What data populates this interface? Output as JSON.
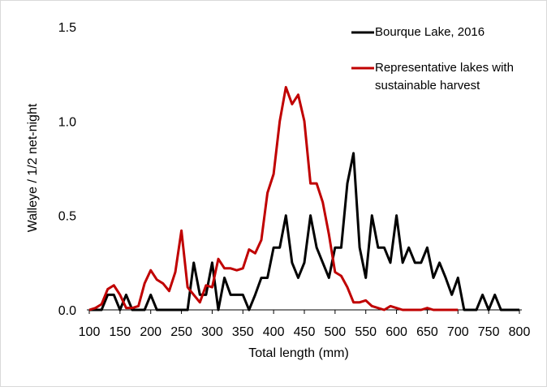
{
  "chart_data": {
    "type": "line",
    "x_label": "Total length (mm)",
    "y_label": "Walleye / 1/2 net-night",
    "x": [
      100,
      110,
      120,
      130,
      140,
      150,
      160,
      170,
      180,
      190,
      200,
      210,
      220,
      230,
      240,
      250,
      260,
      270,
      280,
      290,
      300,
      310,
      320,
      330,
      340,
      350,
      360,
      370,
      380,
      390,
      400,
      410,
      420,
      430,
      440,
      450,
      460,
      470,
      480,
      490,
      500,
      510,
      520,
      530,
      540,
      550,
      560,
      570,
      580,
      590,
      600,
      610,
      620,
      630,
      640,
      650,
      660,
      670,
      680,
      690,
      700,
      710,
      720,
      730,
      740,
      750,
      760,
      770,
      780,
      790,
      800
    ],
    "series": [
      {
        "name": "Bourque Lake, 2016",
        "color": "#000000",
        "values": [
          0,
          0,
          0,
          0.08,
          0.08,
          0,
          0.08,
          0,
          0,
          0,
          0.08,
          0,
          0,
          0,
          0,
          0,
          0,
          0.25,
          0.08,
          0.08,
          0.25,
          0,
          0.17,
          0.08,
          0.08,
          0.08,
          0,
          0.08,
          0.17,
          0.17,
          0.33,
          0.33,
          0.5,
          0.25,
          0.17,
          0.25,
          0.5,
          0.33,
          0.25,
          0.17,
          0.33,
          0.33,
          0.67,
          0.83,
          0.33,
          0.17,
          0.5,
          0.33,
          0.33,
          0.25,
          0.5,
          0.25,
          0.33,
          0.25,
          0.25,
          0.33,
          0.17,
          0.25,
          0.17,
          0.08,
          0.17,
          0,
          0,
          0,
          0.08,
          0,
          0.08,
          0,
          0,
          0,
          0
        ]
      },
      {
        "name": "Representative lakes with sustainable harvest",
        "color": "#c00000",
        "values": [
          0,
          0.01,
          0.03,
          0.11,
          0.13,
          0.08,
          0.01,
          0.01,
          0.02,
          0.14,
          0.21,
          0.16,
          0.14,
          0.1,
          0.2,
          0.42,
          0.12,
          0.08,
          0.04,
          0.13,
          0.12,
          0.27,
          0.22,
          0.22,
          0.21,
          0.22,
          0.32,
          0.3,
          0.37,
          0.62,
          0.72,
          1.0,
          1.18,
          1.09,
          1.14,
          1.0,
          0.67,
          0.67,
          0.57,
          0.4,
          0.2,
          0.18,
          0.12,
          0.04,
          0.04,
          0.05,
          0.02,
          0.01,
          0,
          0.02,
          0.01,
          0,
          0,
          0,
          0,
          0.01,
          0,
          0,
          0,
          0,
          0,
          null,
          null,
          null,
          null,
          null,
          null,
          null,
          null,
          null,
          null
        ]
      }
    ],
    "xlim": [
      100,
      800
    ],
    "xticks": [
      100,
      150,
      200,
      250,
      300,
      350,
      400,
      450,
      500,
      550,
      600,
      650,
      700,
      750,
      800
    ],
    "ylim": [
      0,
      1.5
    ],
    "yticks": [
      {
        "value": 0,
        "label": "0.0"
      },
      {
        "value": 0.5,
        "label": "0.5"
      },
      {
        "value": 1,
        "label": "1.0"
      },
      {
        "value": 1.5,
        "label": "1.5"
      }
    ],
    "grid": false,
    "legend": "top-right"
  }
}
